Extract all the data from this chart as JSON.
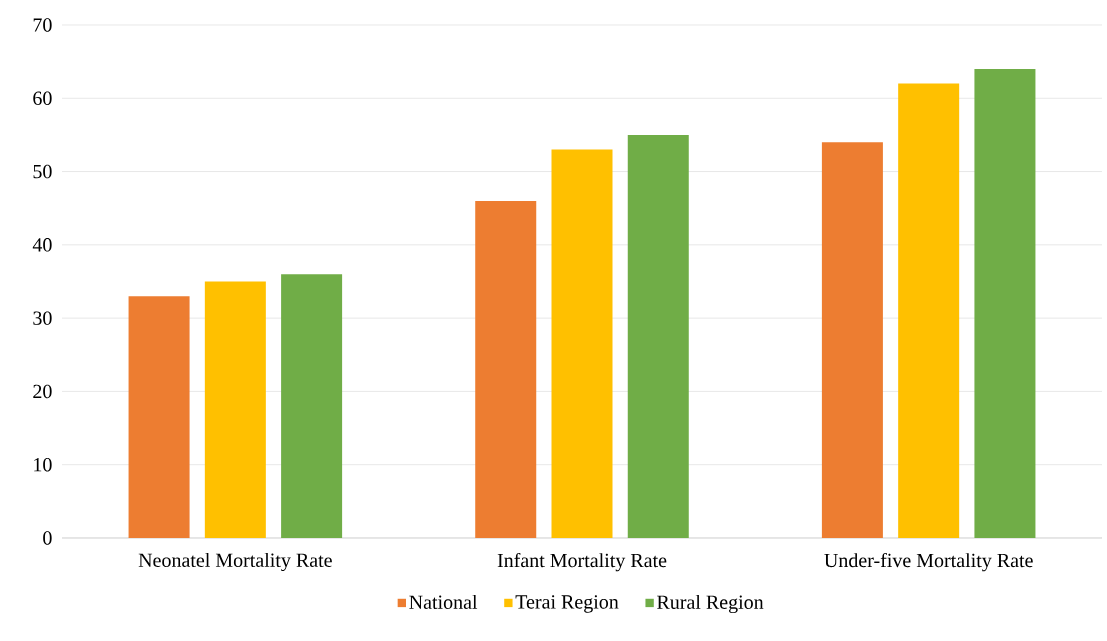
{
  "chart_data": {
    "type": "bar",
    "categories": [
      "Neonatel Mortality Rate",
      "Infant Mortality Rate",
      "Under-five Mortality Rate"
    ],
    "series": [
      {
        "name": "National",
        "color": "#ed7d31",
        "values": [
          33,
          46,
          54
        ]
      },
      {
        "name": "Terai Region",
        "color": "#ffc000",
        "values": [
          35,
          53,
          62
        ]
      },
      {
        "name": "Rural Region",
        "color": "#70ad47",
        "values": [
          36,
          55,
          64
        ]
      }
    ],
    "ylim": [
      0,
      70
    ],
    "yticks": [
      0,
      10,
      20,
      30,
      40,
      50,
      60,
      70
    ],
    "grid": "y",
    "legend": "bottom"
  }
}
